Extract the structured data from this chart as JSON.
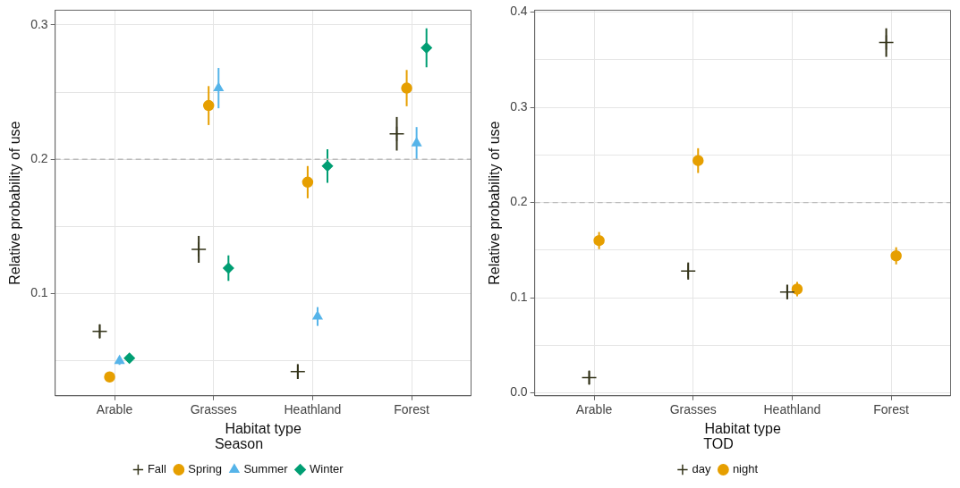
{
  "chart_data": [
    {
      "type": "scatter",
      "xlabel": "Habitat type",
      "ylabel": "Relative probability of use",
      "legend_title": "Season",
      "legend": "bottom",
      "grid": true,
      "categories": [
        "Arable",
        "Grasses",
        "Heathland",
        "Forest"
      ],
      "ylim": [
        0.024,
        0.311
      ],
      "yticks": [
        {
          "value": 0.05,
          "label": null
        },
        0.1,
        {
          "value": 0.15,
          "label": null
        },
        0.2,
        {
          "value": 0.25,
          "label": null
        },
        0.3
      ],
      "ref_lines": [
        {
          "axis": "y",
          "value": 0.2,
          "label": null,
          "color": "#bbbbbb",
          "line_style": "dashed"
        }
      ],
      "series": [
        {
          "name": "Fall",
          "color": "#333319",
          "marker": "cross",
          "values": [
            0.072,
            0.133,
            0.042,
            0.219
          ],
          "errors": [
            0.005,
            0.01,
            0.0055,
            0.0125
          ]
        },
        {
          "name": "Spring",
          "color": "#e69f00",
          "marker": "circle",
          "values": [
            0.038,
            0.24,
            0.183,
            0.253
          ],
          "errors": [
            null,
            0.0145,
            0.012,
            0.0135
          ]
        },
        {
          "name": "Summer",
          "color": "#56b4e9",
          "marker": "triangle",
          "values": [
            0.05,
            0.253,
            0.083,
            0.212
          ],
          "errors": [
            0.003,
            0.015,
            0.007,
            0.012
          ]
        },
        {
          "name": "Winter",
          "color": "#009e73",
          "marker": "diamond",
          "values": [
            0.052,
            0.119,
            0.195,
            0.283
          ],
          "errors": [
            0.003,
            0.0095,
            0.0125,
            0.0145
          ]
        }
      ]
    },
    {
      "type": "scatter",
      "xlabel": "Habitat type",
      "ylabel": "Relative probability of use",
      "legend_title": "TOD",
      "legend": "bottom",
      "grid": true,
      "categories": [
        "Arable",
        "Grasses",
        "Heathland",
        "Forest"
      ],
      "ylim": [
        -0.003,
        0.402
      ],
      "yticks": [
        {
          "value": 0,
          "label": "0.0"
        },
        {
          "value": 0.05,
          "label": null
        },
        0.1,
        {
          "value": 0.15,
          "label": null
        },
        0.2,
        {
          "value": 0.25,
          "label": null
        },
        0.3,
        {
          "value": 0.35,
          "label": null
        },
        0.4
      ],
      "ref_lines": [
        {
          "axis": "y",
          "value": 0.2,
          "label": null,
          "color": "#bbbbbb",
          "line_style": "dashed"
        }
      ],
      "series": [
        {
          "name": "day",
          "color": "#333319",
          "marker": "cross",
          "values": [
            0.016,
            0.128,
            0.106,
            0.368
          ],
          "errors": [
            0.007,
            0.009,
            0.0076,
            0.015
          ]
        },
        {
          "name": "night",
          "color": "#e69f00",
          "marker": "circle",
          "values": [
            0.16,
            0.244,
            0.109,
            0.144
          ],
          "errors": [
            0.009,
            0.013,
            0.0076,
            0.009
          ]
        }
      ]
    }
  ]
}
